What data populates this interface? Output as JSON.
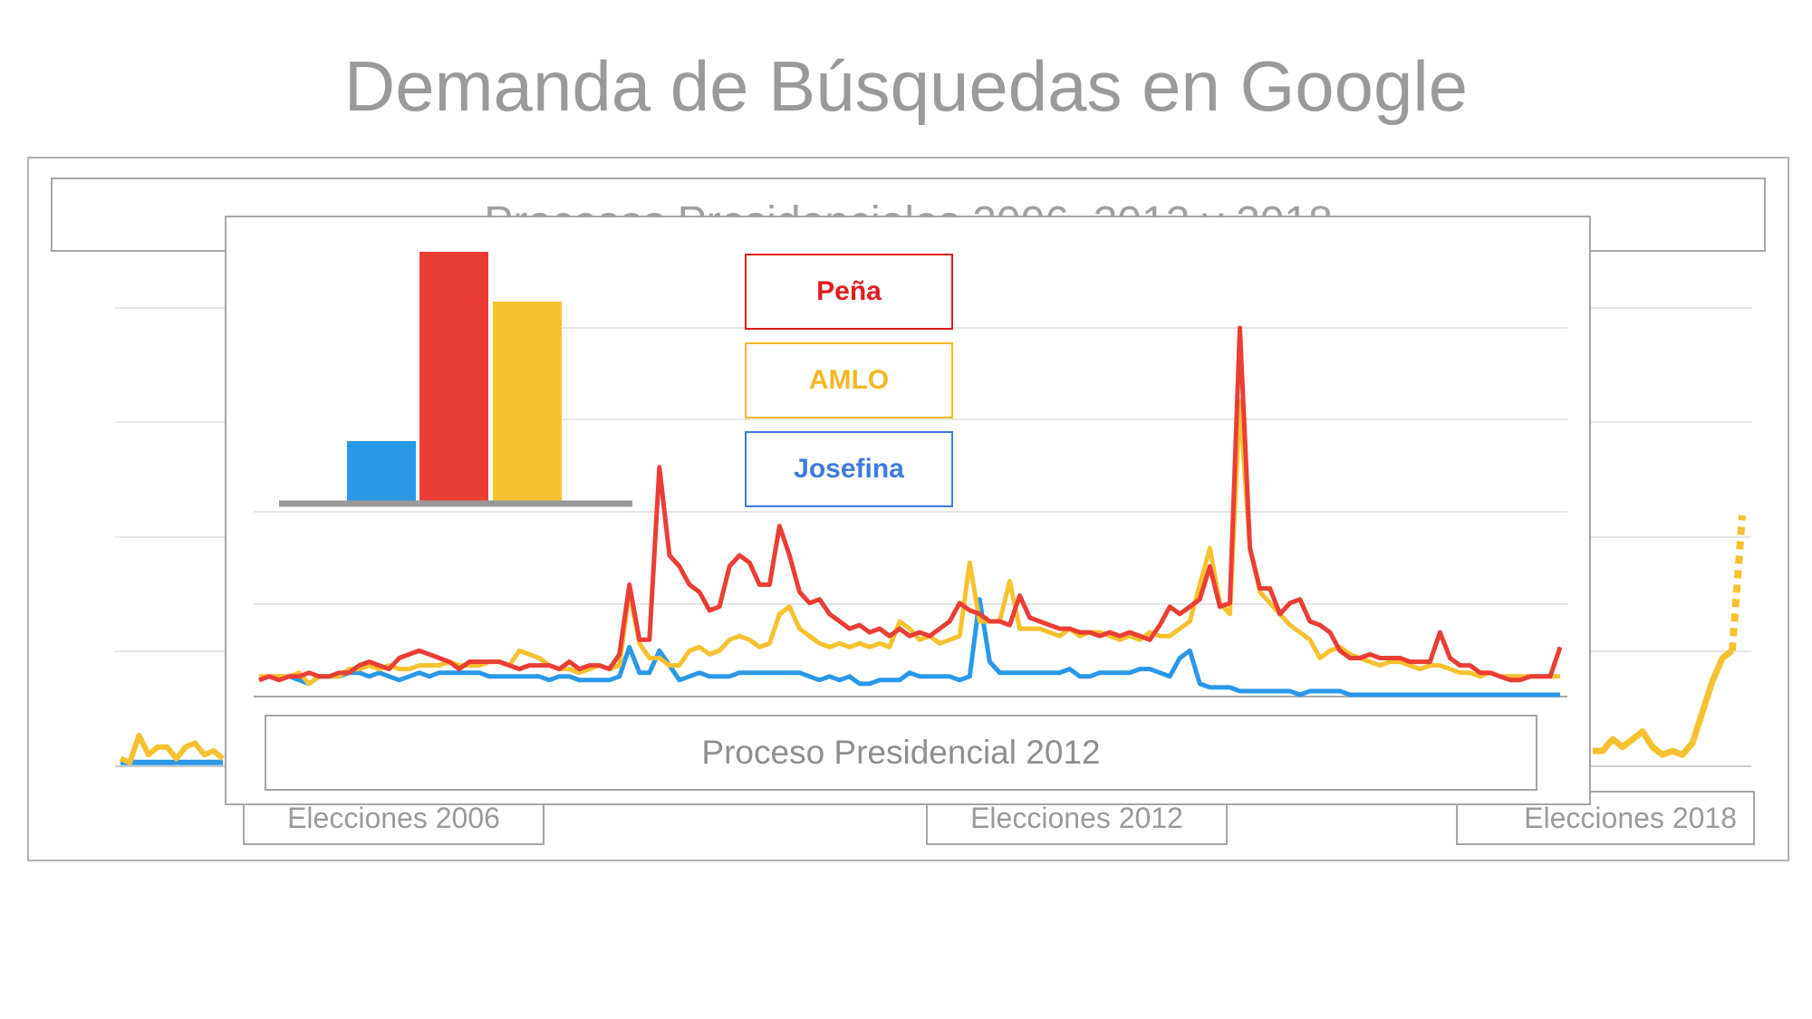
{
  "title": "Demanda de Búsquedas en Google",
  "outer_subtitle": "Procesos Presidenciales 2006, 2012 y 2018",
  "elections": [
    "Elecciones 2006",
    "Elecciones 2012",
    "Elecciones 2018"
  ],
  "inner_caption": "Proceso Presidencial 2012",
  "colors": {
    "pena": "#ea3e35",
    "amlo": "#f7c12f",
    "josefina": "#2a98e8",
    "josefina_text": "#3d7be0",
    "grid": "#e6e6e6",
    "axis": "#999999"
  },
  "legend": [
    {
      "label": "Peña",
      "color": "#e31c1c"
    },
    {
      "label": "AMLO",
      "color": "#f2b824"
    },
    {
      "label": "Josefina",
      "color": "#3d7be0"
    }
  ],
  "chart_data": [
    {
      "type": "line",
      "title": "Proceso Presidencial 2012",
      "ylim": [
        0,
        100
      ],
      "grid": true,
      "series": [
        {
          "name": "Peña",
          "values": [
            4,
            5,
            4,
            5,
            5,
            6,
            5,
            5,
            6,
            6,
            8,
            9,
            8,
            7,
            10,
            11,
            12,
            11,
            10,
            9,
            7,
            9,
            9,
            9,
            9,
            8,
            7,
            8,
            8,
            8,
            7,
            9,
            7,
            8,
            8,
            7,
            11,
            30,
            15,
            15,
            62,
            38,
            35,
            30,
            28,
            23,
            24,
            35,
            38,
            36,
            30,
            30,
            46,
            38,
            28,
            25,
            26,
            22,
            20,
            18,
            19,
            17,
            18,
            16,
            18,
            16,
            17,
            16,
            18,
            20,
            25,
            23,
            22,
            20,
            20,
            19,
            27,
            21,
            20,
            19,
            18,
            18,
            17,
            17,
            16,
            17,
            16,
            17,
            16,
            15,
            19,
            24,
            22,
            24,
            26,
            35,
            24,
            25,
            100,
            40,
            29,
            29,
            22,
            25,
            26,
            20,
            19,
            17,
            12,
            10,
            10,
            11,
            10,
            10,
            10,
            9,
            9,
            9,
            17,
            10,
            8,
            8,
            6,
            6,
            5,
            4,
            4,
            5,
            5,
            5,
            13
          ]
        },
        {
          "name": "AMLO",
          "values": [
            5,
            5,
            5,
            5,
            6,
            3,
            5,
            5,
            5,
            7,
            7,
            8,
            7,
            8,
            7,
            7,
            8,
            8,
            8,
            9,
            8,
            8,
            8,
            9,
            9,
            8,
            12,
            11,
            10,
            8,
            7,
            7,
            6,
            7,
            8,
            7,
            8,
            28,
            14,
            10,
            10,
            8,
            8,
            12,
            13,
            11,
            12,
            15,
            16,
            15,
            13,
            14,
            22,
            24,
            18,
            16,
            14,
            13,
            14,
            13,
            14,
            13,
            14,
            13,
            20,
            18,
            15,
            16,
            14,
            15,
            16,
            36,
            20,
            20,
            20,
            31,
            18,
            18,
            18,
            17,
            16,
            18,
            16,
            17,
            17,
            16,
            15,
            16,
            15,
            17,
            16,
            16,
            18,
            20,
            30,
            40,
            25,
            22,
            80,
            40,
            28,
            25,
            22,
            19,
            17,
            15,
            10,
            12,
            13,
            11,
            10,
            9,
            8,
            9,
            9,
            8,
            7,
            8,
            8,
            7,
            6,
            6,
            5,
            6,
            5,
            5,
            5,
            5,
            5,
            5,
            5
          ]
        },
        {
          "name": "Josefina",
          "values": [
            4,
            5,
            5,
            5,
            4,
            3,
            5,
            5,
            5,
            6,
            6,
            5,
            6,
            5,
            4,
            5,
            6,
            5,
            6,
            6,
            6,
            6,
            6,
            5,
            5,
            5,
            5,
            5,
            5,
            4,
            5,
            5,
            4,
            4,
            4,
            4,
            5,
            13,
            6,
            6,
            12,
            8,
            4,
            5,
            6,
            5,
            5,
            5,
            6,
            6,
            6,
            6,
            6,
            6,
            6,
            5,
            4,
            5,
            4,
            5,
            3,
            3,
            4,
            4,
            4,
            6,
            5,
            5,
            5,
            5,
            4,
            5,
            26,
            9,
            6,
            6,
            6,
            6,
            6,
            6,
            6,
            7,
            5,
            5,
            6,
            6,
            6,
            6,
            7,
            7,
            6,
            5,
            10,
            12,
            3,
            2,
            2,
            2,
            1,
            1,
            1,
            1,
            1,
            1,
            0,
            1,
            1,
            1,
            1,
            0,
            0,
            0,
            0,
            0,
            0,
            0,
            0,
            0,
            0,
            0,
            0,
            0,
            0,
            0,
            0,
            0,
            0,
            0,
            0,
            0,
            0
          ]
        }
      ]
    },
    {
      "type": "bar",
      "categories": [
        "Josefina",
        "Peña",
        "AMLO"
      ],
      "series": [
        {
          "values": [
            24,
            100,
            80
          ]
        }
      ],
      "ylim": [
        0,
        100
      ]
    },
    {
      "type": "line",
      "title": "Procesos Presidenciales 2006, 2012 y 2018",
      "series": [
        {
          "name": "AMLO",
          "values": [
            2,
            1,
            8,
            3,
            5,
            5,
            2,
            5,
            6,
            3,
            4,
            2
          ]
        },
        {
          "name": "Josefina",
          "values": [
            1,
            1,
            1,
            1,
            1,
            1,
            1,
            1,
            1,
            1,
            1,
            1
          ]
        }
      ],
      "series_2018": [
        {
          "name": "AMLO",
          "values": [
            4,
            4,
            7,
            5,
            7,
            9,
            5,
            3,
            4,
            3,
            6,
            14,
            22,
            28,
            30,
            65
          ],
          "projected_tail_points": 2
        }
      ]
    }
  ]
}
